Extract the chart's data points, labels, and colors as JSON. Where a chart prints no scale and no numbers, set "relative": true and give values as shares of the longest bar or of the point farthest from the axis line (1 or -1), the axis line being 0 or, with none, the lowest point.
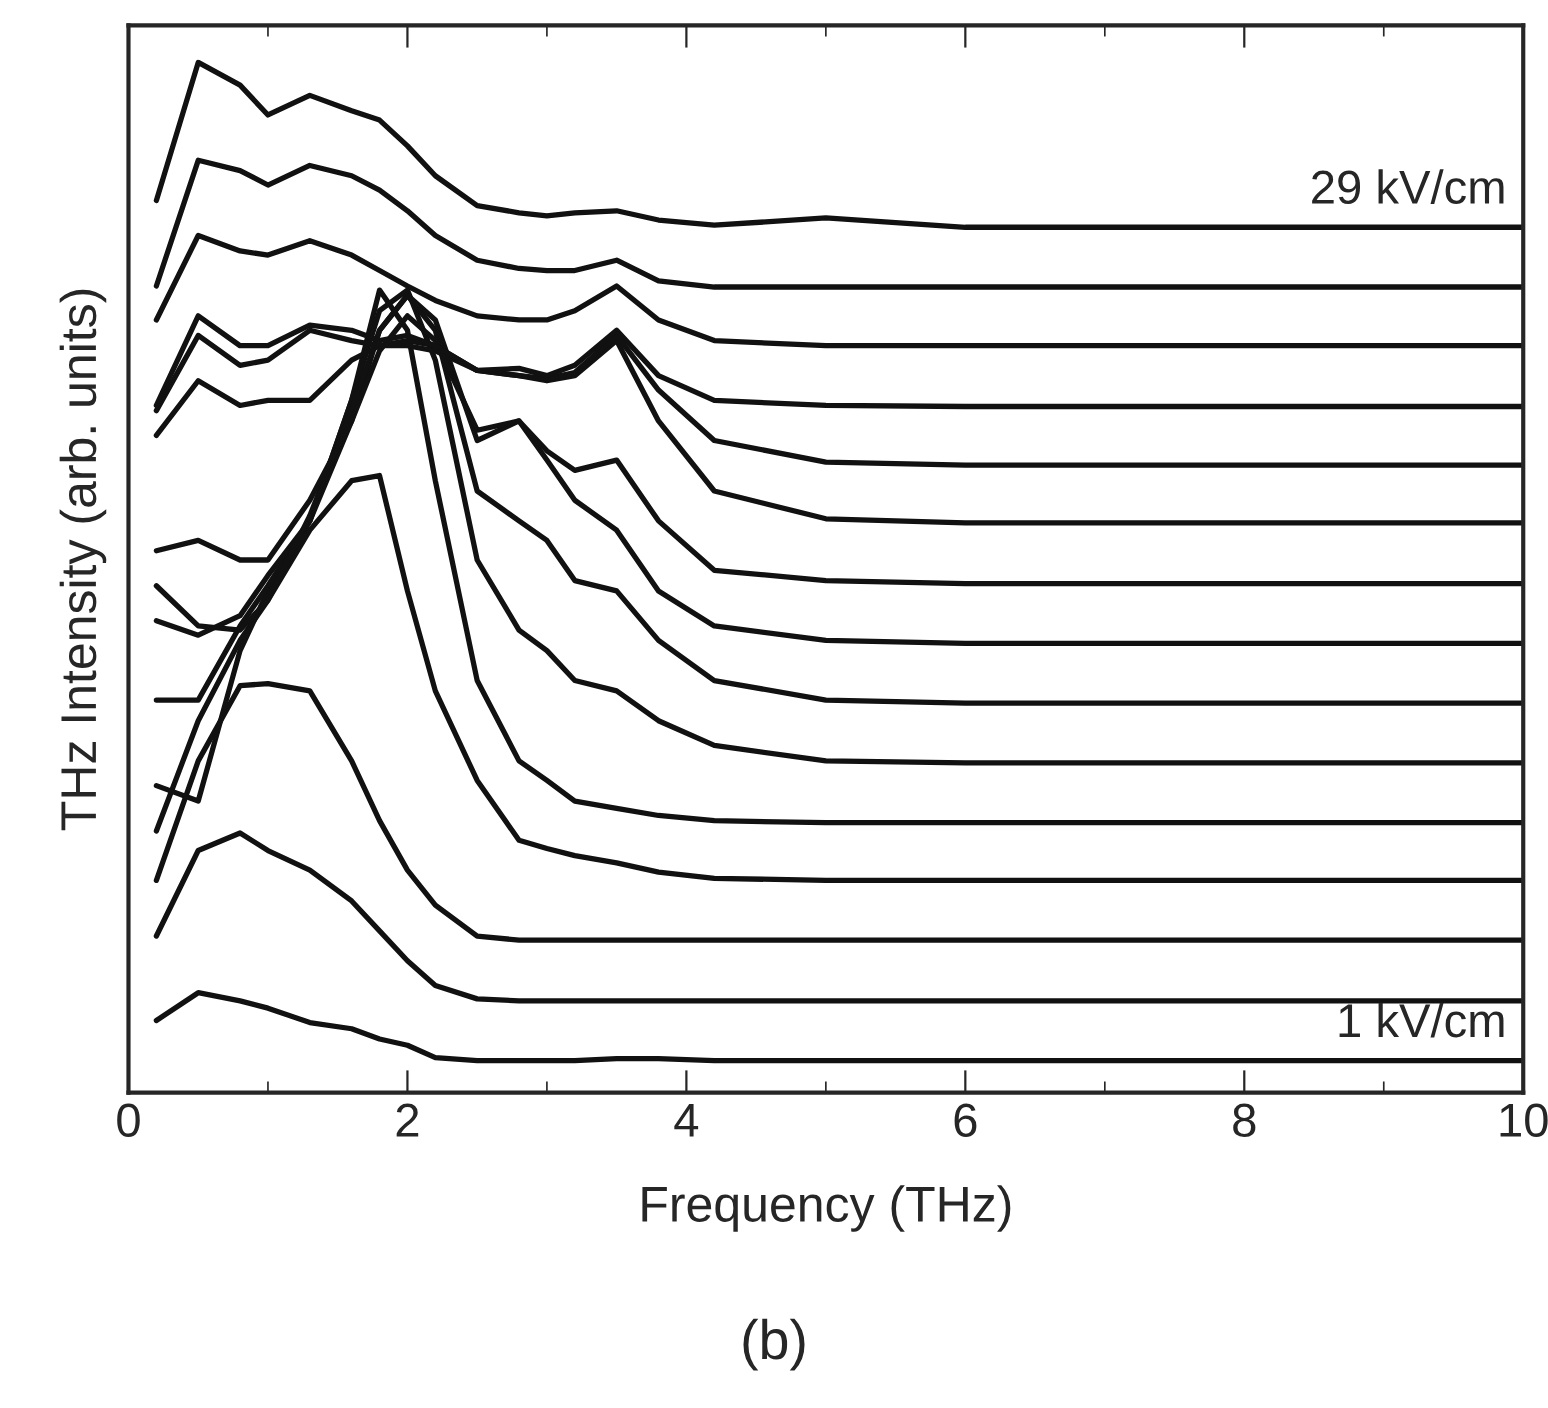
{
  "chart_data": {
    "type": "line",
    "title": "(b)",
    "xlabel": "Frequency (THz)",
    "ylabel": "THz Intensity (arb. units)",
    "relative": true,
    "x": [
      0.2,
      0.5,
      0.8,
      1.0,
      1.3,
      1.6,
      1.8,
      2.0,
      2.2,
      2.5,
      2.8,
      3.0,
      3.2,
      3.5,
      3.8,
      4.2,
      5,
      6,
      8,
      10
    ],
    "xlim": [
      0,
      10
    ],
    "xticks": [
      0,
      2,
      4,
      6,
      8,
      10
    ],
    "grid": false,
    "legend": false,
    "marker": "none",
    "line_style": "solid",
    "series": [
      {
        "color": "#111111",
        "values": [
          0.07,
          0.097,
          0.089,
          0.082,
          0.068,
          0.062,
          0.052,
          0.046,
          0.034,
          0.031,
          0.031,
          0.031,
          0.031,
          0.033,
          0.033,
          0.031,
          0.031,
          0.031,
          0.031,
          0.031
        ]
      },
      {
        "color": "#111111",
        "values": [
          0.152,
          0.235,
          0.252,
          0.235,
          0.216,
          0.186,
          0.157,
          0.128,
          0.104,
          0.091,
          0.089,
          0.089,
          0.089,
          0.089,
          0.089,
          0.089,
          0.089,
          0.089,
          0.089,
          0.089
        ]
      },
      {
        "color": "#111111",
        "values": [
          0.206,
          0.322,
          0.395,
          0.397,
          0.39,
          0.322,
          0.264,
          0.216,
          0.182,
          0.152,
          0.148,
          0.148,
          0.148,
          0.148,
          0.148,
          0.148,
          0.148,
          0.148,
          0.148,
          0.148
        ]
      },
      {
        "color": "#111111",
        "values": [
          0.254,
          0.361,
          0.439,
          0.478,
          0.546,
          0.594,
          0.599,
          0.487,
          0.39,
          0.303,
          0.245,
          0.237,
          0.23,
          0.223,
          0.214,
          0.208,
          0.206,
          0.206,
          0.206,
          0.206
        ]
      },
      {
        "color": "#111111",
        "values": [
          0.298,
          0.283,
          0.429,
          0.487,
          0.555,
          0.672,
          0.779,
          0.74,
          0.594,
          0.4,
          0.322,
          0.303,
          0.283,
          0.276,
          0.269,
          0.264,
          0.262,
          0.262,
          0.262,
          0.262
        ]
      },
      {
        "color": "#111111",
        "values": [
          0.381,
          0.381,
          0.453,
          0.492,
          0.555,
          0.672,
          0.759,
          0.779,
          0.711,
          0.517,
          0.449,
          0.429,
          0.4,
          0.39,
          0.361,
          0.337,
          0.322,
          0.32,
          0.32,
          0.32
        ]
      },
      {
        "color": "#111111",
        "values": [
          0.458,
          0.444,
          0.463,
          0.502,
          0.555,
          0.652,
          0.74,
          0.774,
          0.74,
          0.584,
          0.555,
          0.536,
          0.497,
          0.487,
          0.439,
          0.4,
          0.381,
          0.378,
          0.378,
          0.378
        ]
      },
      {
        "color": "#111111",
        "values": [
          0.492,
          0.453,
          0.449,
          0.478,
          0.56,
          0.662,
          0.74,
          0.774,
          0.75,
          0.633,
          0.652,
          0.614,
          0.575,
          0.546,
          0.487,
          0.453,
          0.439,
          0.436,
          0.436,
          0.436
        ]
      },
      {
        "color": "#111111",
        "values": [
          0.526,
          0.536,
          0.517,
          0.517,
          0.575,
          0.652,
          0.72,
          0.754,
          0.73,
          0.643,
          0.652,
          0.623,
          0.604,
          0.614,
          0.555,
          0.507,
          0.497,
          0.494,
          0.494,
          0.494
        ]
      },
      {
        "color": "#111111",
        "values": [
          0.638,
          0.691,
          0.667,
          0.672,
          0.672,
          0.711,
          0.725,
          0.73,
          0.725,
          0.701,
          0.696,
          0.691,
          0.696,
          0.73,
          0.652,
          0.584,
          0.557,
          0.553,
          0.553,
          0.553
        ]
      },
      {
        "color": "#111111",
        "values": [
          0.662,
          0.735,
          0.706,
          0.711,
          0.74,
          0.73,
          0.725,
          0.725,
          0.72,
          0.701,
          0.696,
          0.693,
          0.699,
          0.735,
          0.682,
          0.633,
          0.612,
          0.609,
          0.609,
          0.609
        ]
      },
      {
        "color": "#111111",
        "values": [
          0.667,
          0.754,
          0.725,
          0.725,
          0.745,
          0.74,
          0.73,
          0.735,
          0.725,
          0.701,
          0.703,
          0.696,
          0.706,
          0.74,
          0.696,
          0.672,
          0.667,
          0.666,
          0.666,
          0.666
        ]
      },
      {
        "color": "#111111",
        "values": [
          0.75,
          0.832,
          0.817,
          0.813,
          0.827,
          0.813,
          0.798,
          0.783,
          0.769,
          0.754,
          0.75,
          0.75,
          0.759,
          0.783,
          0.75,
          0.73,
          0.725,
          0.725,
          0.725,
          0.725
        ]
      },
      {
        "color": "#111111",
        "values": [
          0.783,
          0.905,
          0.895,
          0.881,
          0.9,
          0.89,
          0.876,
          0.856,
          0.832,
          0.808,
          0.8,
          0.798,
          0.798,
          0.808,
          0.788,
          0.782,
          0.782,
          0.782,
          0.782,
          0.782
        ]
      },
      {
        "color": "#111111",
        "values": [
          0.866,
          1.0,
          0.978,
          0.949,
          0.968,
          0.953,
          0.944,
          0.919,
          0.89,
          0.861,
          0.854,
          0.851,
          0.854,
          0.856,
          0.847,
          0.842,
          0.849,
          0.84,
          0.84,
          0.84
        ]
      }
    ],
    "annotations": [
      {
        "text": "29 kV/cm",
        "x": 10,
        "y": 0.84
      },
      {
        "text": "1 kV/cm",
        "x": 10,
        "y": 0.031
      }
    ]
  }
}
